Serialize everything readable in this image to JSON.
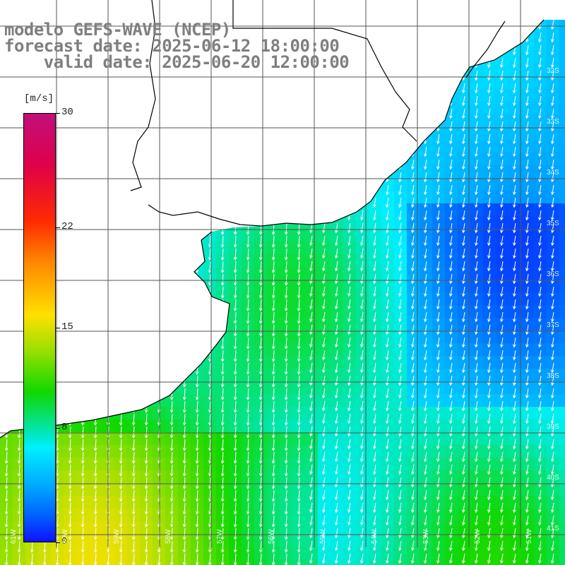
{
  "title": {
    "line1": "modelo GEFS-WAVE (NCEP)",
    "line2": "forecast date: 2025-06-12 18:00:00",
    "line3": "    valid date: 2025-06-20 12:00:00"
  },
  "colorbar": {
    "unit": "[m/s]",
    "ticks": [
      "30",
      "22",
      "15",
      "8",
      "0"
    ],
    "tick_values": [
      30,
      22,
      15,
      8,
      0
    ]
  },
  "lat_labels": [
    "32S",
    "33S",
    "34S",
    "35S",
    "36S",
    "37S",
    "38S",
    "39S",
    "40S",
    "41S"
  ],
  "lon_labels": [
    "61W",
    "60W",
    "59W",
    "58W",
    "57W",
    "56W",
    "55W",
    "54W",
    "53W",
    "52W",
    "51W"
  ],
  "field": {
    "variable": "wind speed",
    "range": [
      0,
      30
    ],
    "typical_values": {
      "southwest": 11,
      "center": 10,
      "east": 6
    }
  },
  "colors": {
    "land": "#ffffff",
    "coast": "#000000",
    "grid": "#555555",
    "arrows": "#ffffff",
    "title": "#7f7f7f"
  }
}
